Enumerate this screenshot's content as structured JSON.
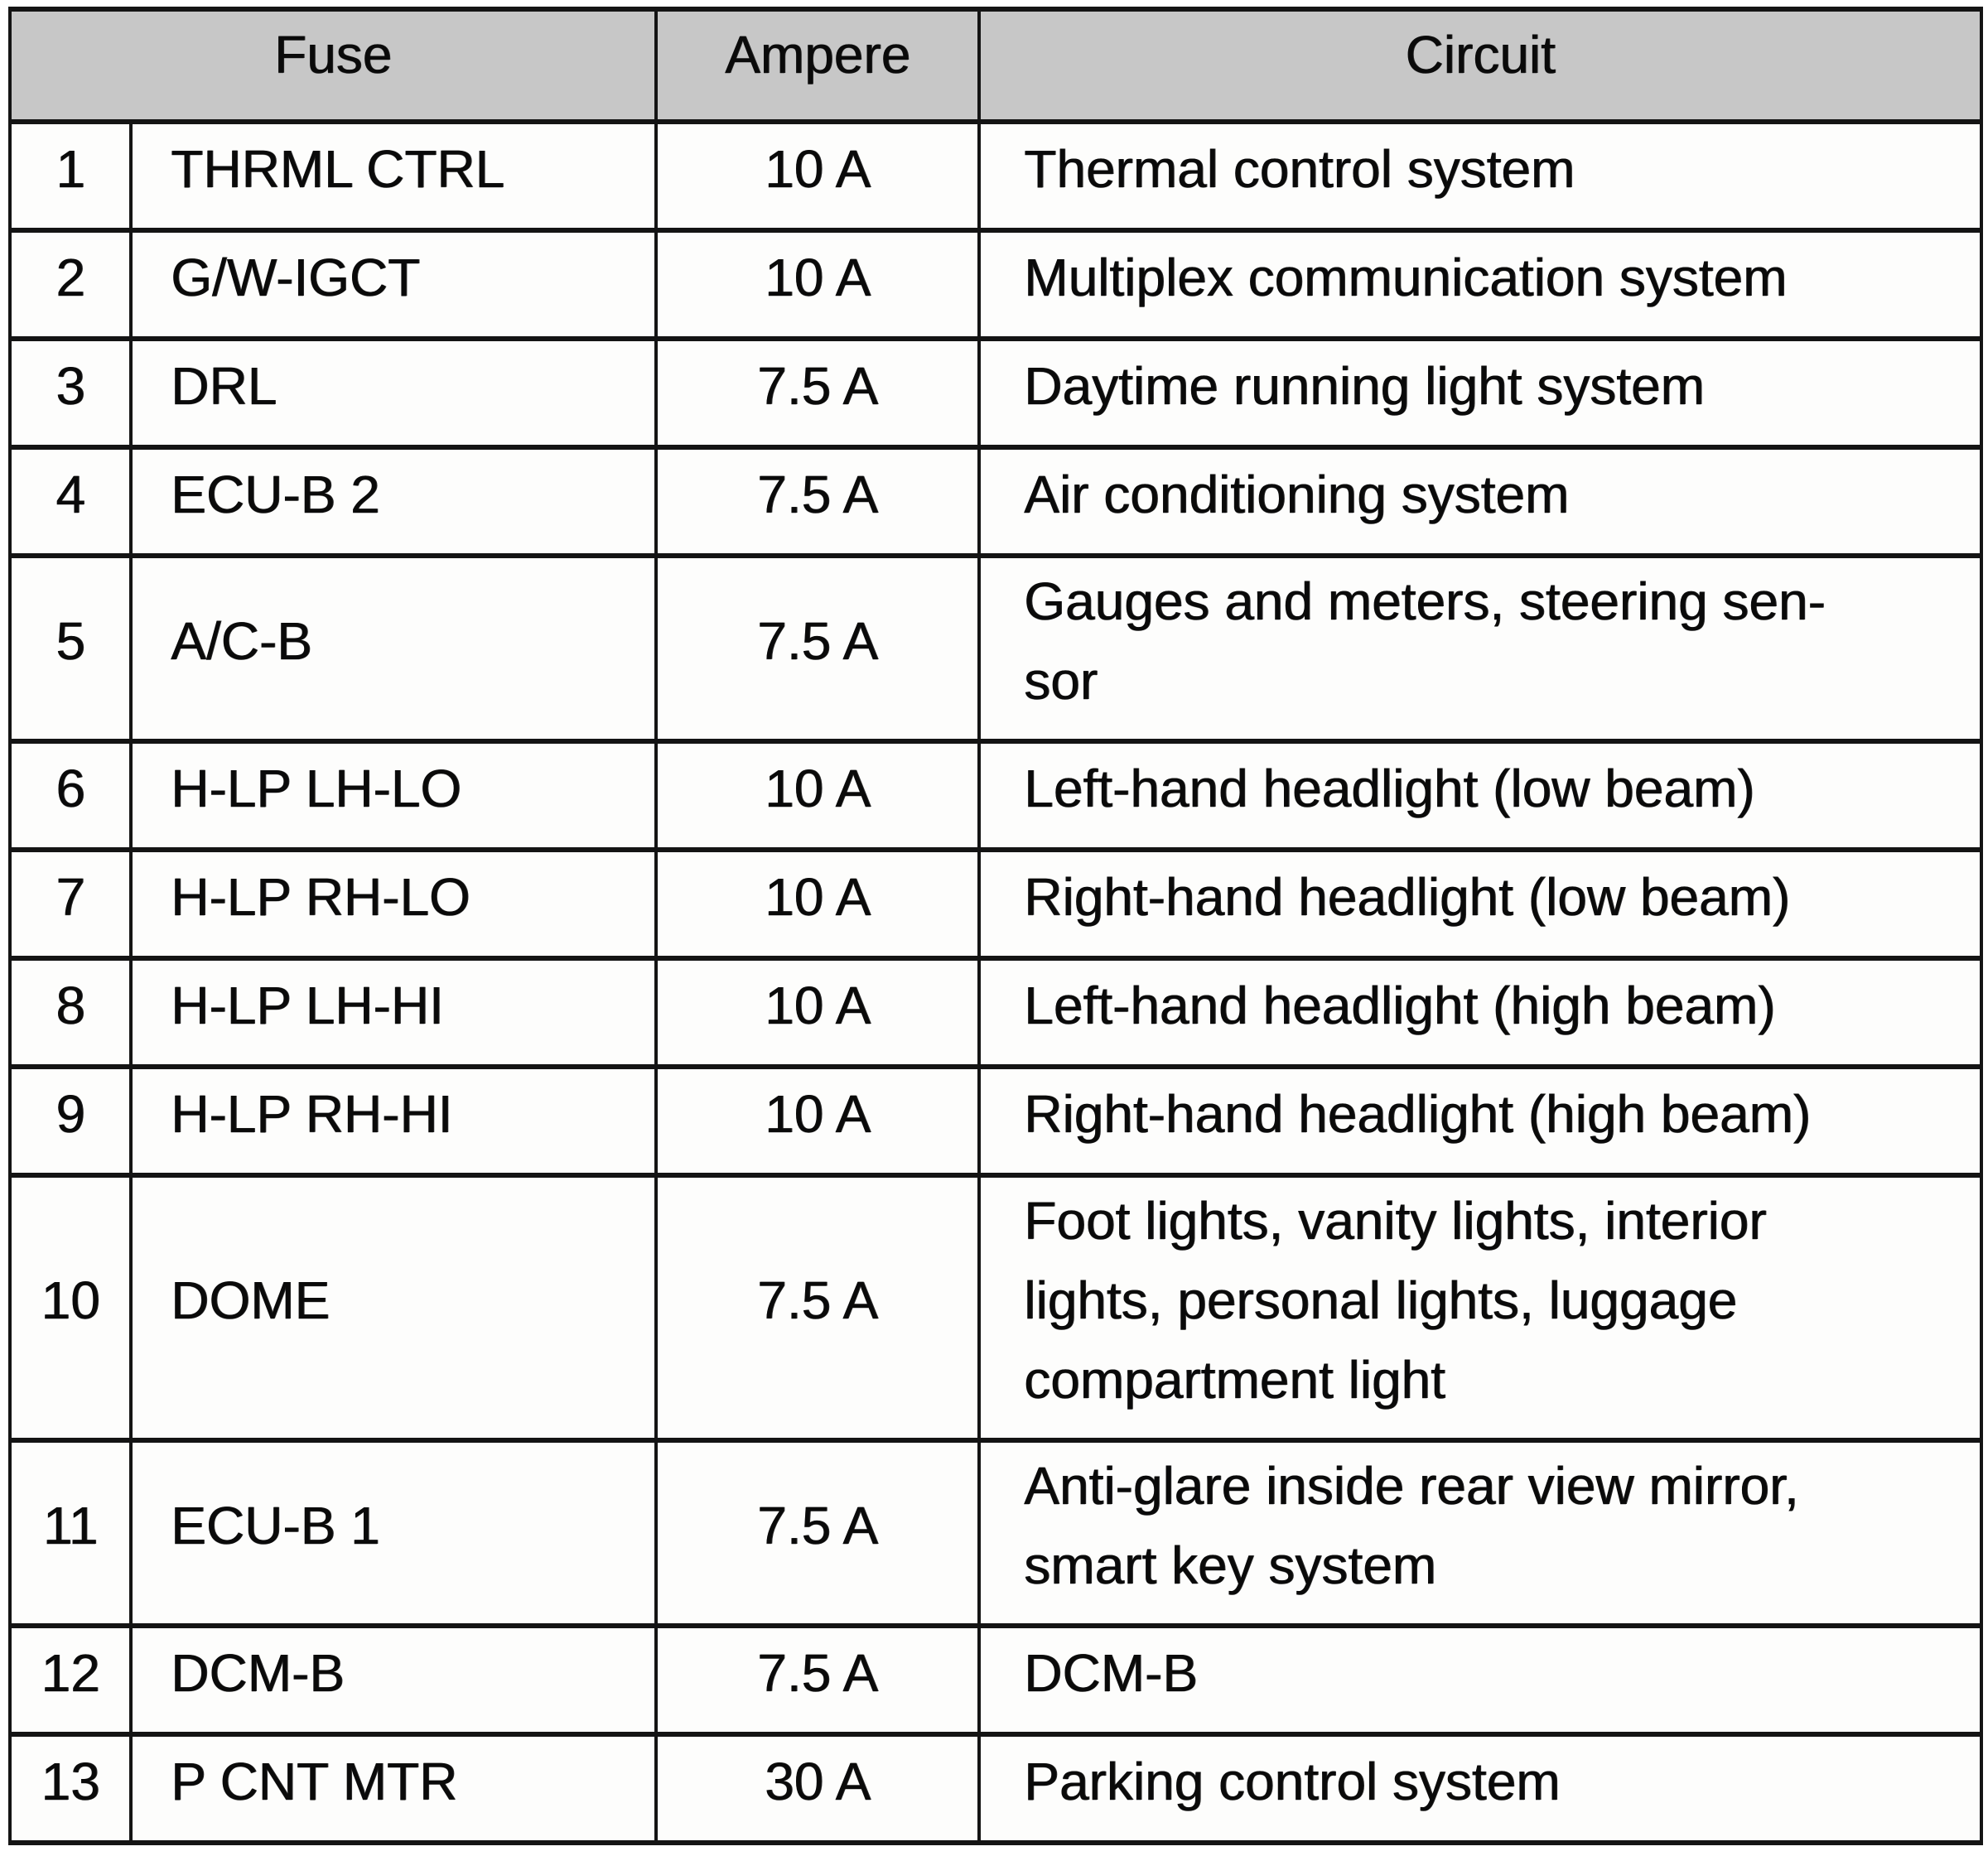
{
  "table": {
    "headers": {
      "fuse": "Fuse",
      "ampere": "Ampere",
      "circuit": "Circuit"
    },
    "rows": [
      {
        "number": "1",
        "fuse": "THRML CTRL",
        "ampere": "10 A",
        "circuit": "Thermal control system"
      },
      {
        "number": "2",
        "fuse": "G/W-IGCT",
        "ampere": "10 A",
        "circuit": "Multiplex communication system"
      },
      {
        "number": "3",
        "fuse": "DRL",
        "ampere": "7.5 A",
        "circuit": "Daytime running light system"
      },
      {
        "number": "4",
        "fuse": "ECU-B 2",
        "ampere": "7.5 A",
        "circuit": "Air conditioning system"
      },
      {
        "number": "5",
        "fuse": "A/C-B",
        "ampere": "7.5 A",
        "circuit": "Gauges and meters, steering sen-\nsor"
      },
      {
        "number": "6",
        "fuse": "H-LP LH-LO",
        "ampere": "10 A",
        "circuit": "Left-hand headlight (low beam)"
      },
      {
        "number": "7",
        "fuse": "H-LP RH-LO",
        "ampere": "10 A",
        "circuit": "Right-hand headlight (low beam)"
      },
      {
        "number": "8",
        "fuse": "H-LP LH-HI",
        "ampere": "10 A",
        "circuit": "Left-hand headlight (high beam)"
      },
      {
        "number": "9",
        "fuse": "H-LP RH-HI",
        "ampere": "10 A",
        "circuit": "Right-hand headlight (high beam)"
      },
      {
        "number": "10",
        "fuse": "DOME",
        "ampere": "7.5 A",
        "circuit": "Foot lights, vanity lights, interior\nlights, personal lights, luggage\ncompartment light"
      },
      {
        "number": "11",
        "fuse": "ECU-B 1",
        "ampere": "7.5 A",
        "circuit": "Anti-glare inside rear view mirror,\nsmart key system"
      },
      {
        "number": "12",
        "fuse": "DCM-B",
        "ampere": "7.5 A",
        "circuit": "DCM-B"
      },
      {
        "number": "13",
        "fuse": "P CNT MTR",
        "ampere": "30 A",
        "circuit": "Parking control system"
      }
    ]
  },
  "colors": {
    "header_bg": "#c7c7c7",
    "border": "#141414",
    "text": "#0a0a0a",
    "cell_bg": "#fdfdfc",
    "page_bg": "#ffffff"
  }
}
